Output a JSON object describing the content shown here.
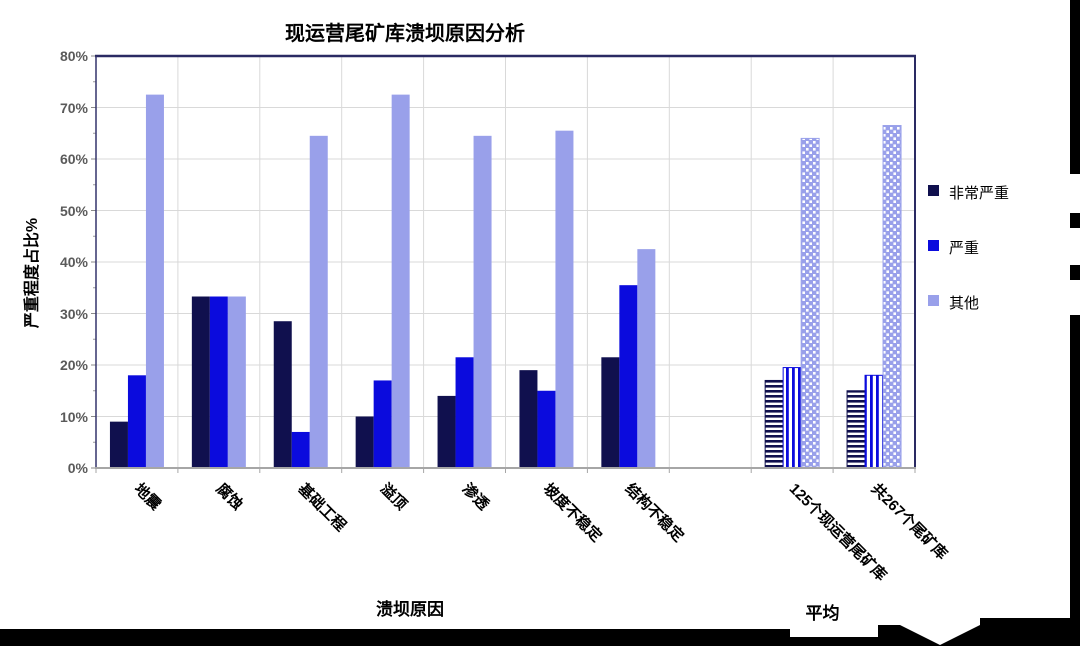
{
  "chart_data": {
    "type": "bar",
    "title": "现运营尾矿库溃坝原因分析",
    "ylabel": "严重程度占比%",
    "xlabel_causes": "溃坝原因",
    "xlabel_average": "平均",
    "ylim": [
      0,
      80
    ],
    "ytick_step": 10,
    "ytick_format": "percent",
    "grid": true,
    "legend_position": "right",
    "categories": [
      "地震",
      "腐蚀",
      "基础工程",
      "溢顶",
      "渗透",
      "坡度不稳定",
      "结构不稳定",
      "125个现运营尾矿库",
      "共267个尾矿库"
    ],
    "average_category_indices": [
      7,
      8
    ],
    "series": [
      {
        "name": "非常严重",
        "color": "#10104e",
        "average_pattern": "horizontal-stripes",
        "values": [
          9,
          33.3,
          28.5,
          10,
          14,
          19,
          21.5,
          17,
          15
        ]
      },
      {
        "name": "严重",
        "color": "#0b0bdd",
        "average_pattern": "vertical-stripes",
        "values": [
          18,
          33.3,
          7,
          17,
          21.5,
          15,
          35.5,
          19.5,
          18
        ]
      },
      {
        "name": "其他",
        "color": "#99a0ea",
        "average_pattern": "dots",
        "values": [
          72.5,
          33.3,
          64.5,
          72.5,
          64.5,
          65.5,
          42.5,
          64,
          66.5
        ]
      }
    ],
    "legend": [
      "非常严重",
      "严重",
      "其他"
    ]
  },
  "colors": {
    "grid": "#d9d9d9",
    "plot_border": "#2a2a63",
    "axis_gray": "#a6a6a6",
    "tick_text": "#5a5a5a",
    "artifact_black": "#000000"
  }
}
